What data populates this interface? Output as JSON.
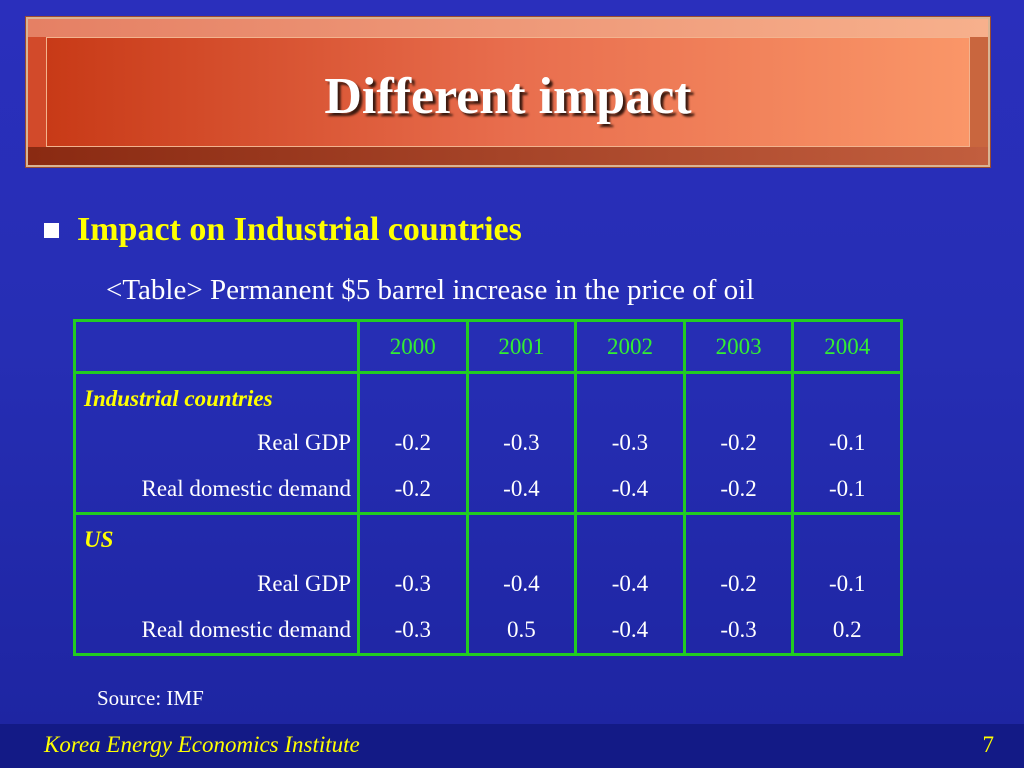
{
  "title": "Different impact",
  "bullet": "Impact on Industrial countries",
  "caption": "<Table> Permanent $5 barrel increase in the price of oil",
  "table": {
    "years": [
      "2000",
      "2001",
      "2002",
      "2003",
      "2004"
    ],
    "groups": [
      {
        "name": "Industrial countries",
        "rows": [
          {
            "label": "Real GDP",
            "values": [
              "-0.2",
              "-0.3",
              "-0.3",
              "-0.2",
              "-0.1"
            ]
          },
          {
            "label": "Real domestic demand",
            "values": [
              "-0.2",
              "-0.4",
              "-0.4",
              "-0.2",
              "-0.1"
            ]
          }
        ]
      },
      {
        "name": "US",
        "rows": [
          {
            "label": "Real GDP",
            "values": [
              "-0.3",
              "-0.4",
              "-0.4",
              "-0.2",
              "-0.1"
            ]
          },
          {
            "label": "Real domestic demand",
            "values": [
              "-0.3",
              "0.5",
              "-0.4",
              "-0.3",
              "0.2"
            ]
          }
        ]
      }
    ]
  },
  "source": "Source: IMF",
  "footer": {
    "organization": "Korea Energy Economics Institute",
    "page_number": "7"
  }
}
